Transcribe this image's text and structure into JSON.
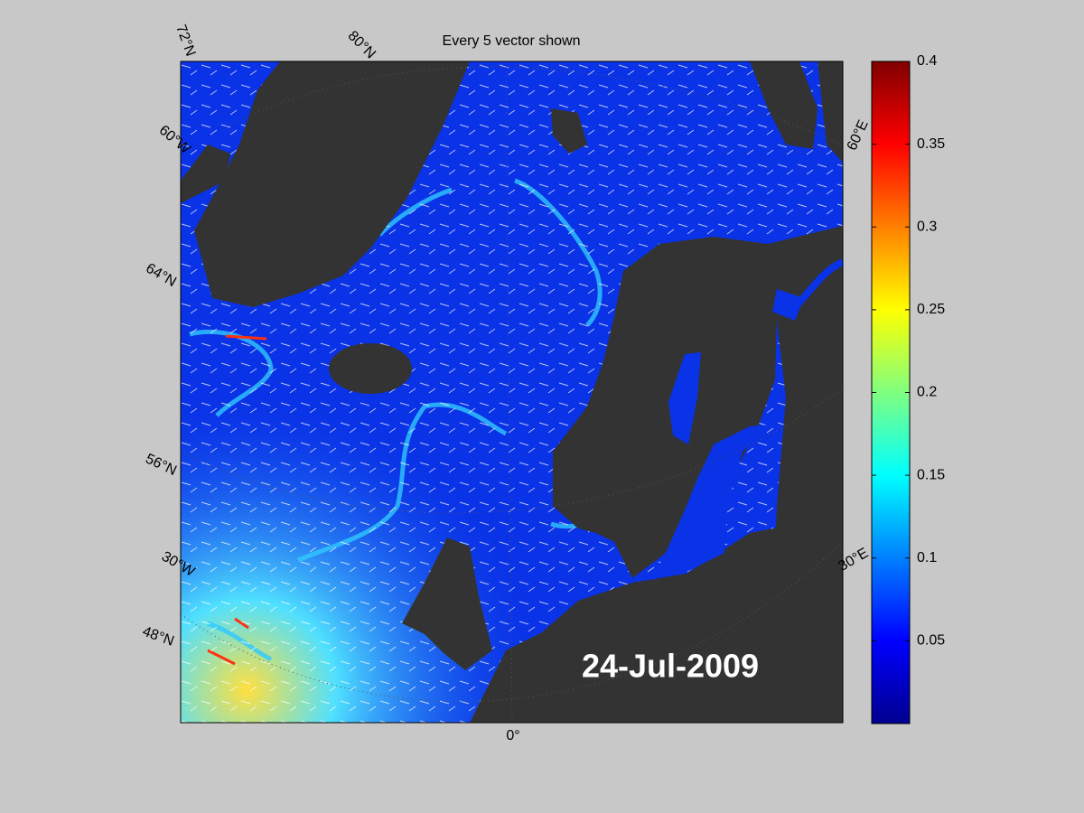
{
  "title": "Every 5 vector shown",
  "date_label": "24-Jul-2009",
  "graticule_labels": [
    "72°N",
    "80°N",
    "60°W",
    "64°N",
    "56°N",
    "30°W",
    "48°N",
    "0°",
    "30°E",
    "60°E"
  ],
  "colorbar": {
    "colormap": "jet",
    "ylim": [
      0,
      0.4
    ],
    "yticks": [
      0.05,
      0.1,
      0.15,
      0.2,
      0.25,
      0.3,
      0.35,
      0.4
    ]
  }
}
